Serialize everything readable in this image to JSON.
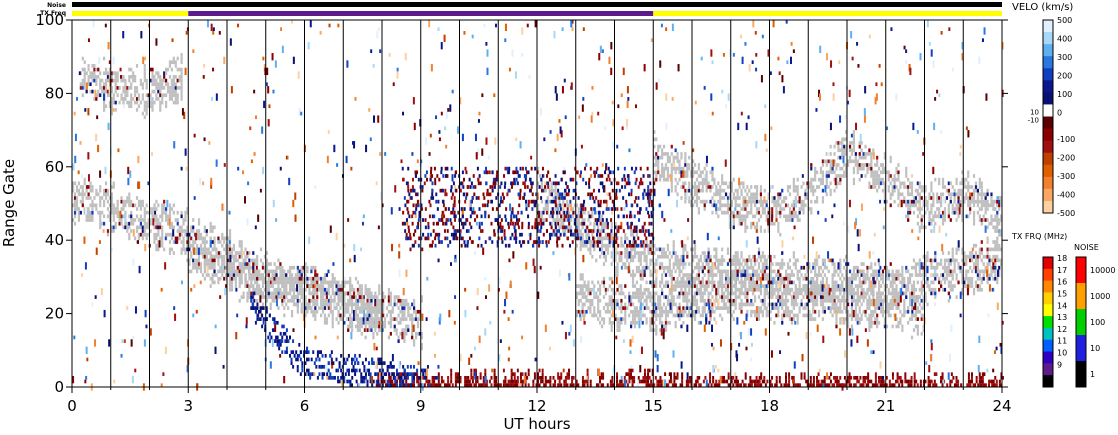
{
  "chart_data": {
    "type": "heatmap",
    "title": "",
    "xlabel": "UT hours",
    "ylabel": "Range Gate",
    "xlim": [
      0,
      24
    ],
    "ylim": [
      0,
      100
    ],
    "x_ticks": [
      0,
      3,
      6,
      9,
      12,
      15,
      18,
      21,
      24
    ],
    "y_ticks": [
      0,
      20,
      40,
      60,
      80,
      100
    ],
    "status_bars": {
      "noise_label": "Noise",
      "txfreq_label": "TX Freq",
      "txfreq_segments": [
        {
          "start": 0,
          "end": 3,
          "color": "#ffff00"
        },
        {
          "start": 3,
          "end": 15,
          "color": "#5c1a8c"
        },
        {
          "start": 15,
          "end": 24,
          "color": "#ffff00"
        }
      ],
      "noise_color": "#000000"
    },
    "ground_scatter_color": "#c0c0c0",
    "ionospheric_echo_bands": [
      {
        "label": "ground scatter",
        "points": [
          [
            0,
            51
          ],
          [
            1,
            48
          ],
          [
            2,
            44
          ],
          [
            3,
            41
          ],
          [
            4,
            35
          ],
          [
            5,
            29
          ],
          [
            6,
            26
          ],
          [
            7,
            24
          ],
          [
            8,
            20
          ],
          [
            9,
            17
          ]
        ]
      },
      {
        "label": "ground scatter",
        "points": [
          [
            0.2,
            84
          ],
          [
            1,
            81
          ],
          [
            2,
            80
          ],
          [
            2.8,
            84
          ]
        ]
      },
      {
        "label": "ground scatter",
        "points": [
          [
            3,
            36
          ],
          [
            4,
            31
          ],
          [
            5,
            27
          ],
          [
            6,
            25
          ],
          [
            7,
            22
          ],
          [
            8,
            18
          ]
        ]
      },
      {
        "label": "ground scatter",
        "points": [
          [
            12,
            52
          ],
          [
            13,
            44
          ],
          [
            14,
            37
          ],
          [
            15,
            33
          ],
          [
            16,
            32
          ],
          [
            17,
            31
          ],
          [
            18,
            30
          ],
          [
            19,
            29
          ],
          [
            20,
            28
          ],
          [
            21,
            27
          ],
          [
            22,
            29
          ],
          [
            23,
            31
          ],
          [
            24,
            34
          ]
        ]
      },
      {
        "label": "ground scatter",
        "points": [
          [
            15,
            62
          ],
          [
            16,
            55
          ],
          [
            17,
            50
          ],
          [
            18,
            47
          ],
          [
            19,
            52
          ],
          [
            20,
            63
          ],
          [
            21,
            56
          ],
          [
            22,
            48
          ],
          [
            23,
            52
          ],
          [
            24,
            46
          ]
        ]
      },
      {
        "label": "ground scatter",
        "points": [
          [
            13,
            24
          ],
          [
            14,
            22
          ],
          [
            15,
            21
          ],
          [
            16,
            23
          ],
          [
            17,
            25
          ],
          [
            18,
            24
          ],
          [
            19,
            23
          ],
          [
            20,
            22
          ],
          [
            21,
            21
          ],
          [
            22,
            19
          ]
        ]
      }
    ],
    "velocity_colorbar": {
      "title": "VELO (km/s)",
      "ticks": [
        500,
        400,
        300,
        200,
        100,
        0,
        -100,
        -200,
        -300,
        -400,
        -500
      ],
      "gap_labels": [
        "10",
        "-10"
      ],
      "colors": [
        "#e0f0ff",
        "#a8d8f8",
        "#60b0f0",
        "#2878e0",
        "#1040c0",
        "#0a1890",
        "#0a1070",
        "#ffffff",
        "#5a0000",
        "#8b0000",
        "#a01010",
        "#c04000",
        "#e06000",
        "#f08030",
        "#f8a860",
        "#fcd0a0"
      ]
    },
    "txfreq_colorbar": {
      "title": "TX FRQ (MHz)",
      "ticks": [
        18,
        17,
        16,
        15,
        14,
        13,
        12,
        11,
        10,
        9
      ],
      "colors": [
        "#e00000",
        "#ff4000",
        "#ff8800",
        "#ffd000",
        "#ffff00",
        "#00e000",
        "#00c0c0",
        "#0060ff",
        "#3000c0",
        "#5c1a8c",
        "#000000"
      ]
    },
    "noise_colorbar": {
      "title": "NOISE",
      "ticks": [
        "10000",
        "1000",
        "100",
        "10",
        "1"
      ],
      "colors": [
        "#ff0000",
        "#ffa000",
        "#00d000",
        "#2020e0",
        "#000000"
      ]
    }
  }
}
